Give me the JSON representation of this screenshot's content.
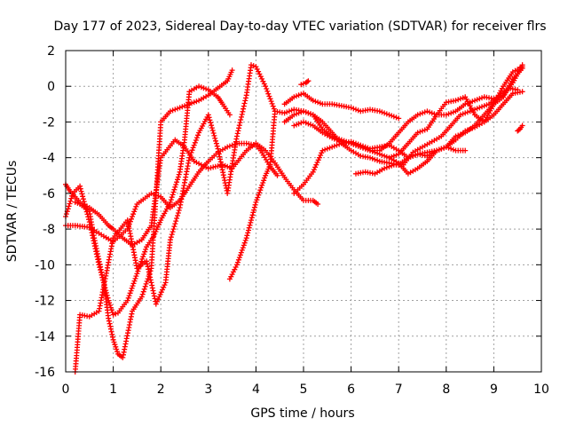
{
  "chart_data": {
    "type": "scatter",
    "title": "Day 177 of 2023, Sidereal Day-to-day VTEC variation (SDTVAR) for receiver flrs",
    "xlabel": "GPS time / hours",
    "ylabel": "SDTVAR / TECUs",
    "xlim": [
      0,
      10
    ],
    "ylim": [
      -16,
      2
    ],
    "xticks": [
      "0",
      "1",
      "2",
      "3",
      "4",
      "5",
      "6",
      "7",
      "8",
      "9",
      "10"
    ],
    "yticks": [
      "-16",
      "-14",
      "-12",
      "-10",
      "-8",
      "-6",
      "-4",
      "-2",
      "0",
      "2"
    ],
    "grid": true,
    "marker": "+",
    "color": "#ff0000",
    "series": [
      {
        "x": [
          0.0,
          0.2,
          0.5,
          0.8,
          1.0,
          1.3,
          1.5,
          1.8,
          2.0,
          2.2,
          2.4,
          2.6,
          2.8,
          3.0,
          3.2,
          3.4,
          3.6,
          3.8,
          4.0,
          4.1,
          4.3,
          4.45
        ],
        "y": [
          -7.8,
          -7.8,
          -7.9,
          -8.4,
          -8.7,
          -8.0,
          -6.6,
          -6.0,
          -6.2,
          -6.8,
          -6.4,
          -5.6,
          -4.8,
          -4.2,
          -3.7,
          -3.4,
          -3.2,
          -3.2,
          -3.3,
          -3.6,
          -4.5,
          -5.0
        ]
      },
      {
        "x": [
          0.0,
          0.1,
          0.3,
          0.5,
          0.7,
          0.9,
          1.0,
          1.2,
          1.4,
          1.6,
          1.8,
          2.0,
          2.3,
          2.5,
          2.7,
          3.0,
          3.3,
          3.5,
          3.8,
          4.0,
          4.2,
          4.4,
          4.6,
          4.8,
          5.0,
          5.2,
          5.3
        ],
        "y": [
          -5.5,
          -5.9,
          -6.5,
          -6.8,
          -7.2,
          -7.8,
          -8.0,
          -8.5,
          -8.9,
          -8.6,
          -7.8,
          -4.0,
          -3.0,
          -3.4,
          -4.2,
          -4.6,
          -4.4,
          -4.6,
          -3.6,
          -3.2,
          -3.6,
          -4.3,
          -5.1,
          -5.8,
          -6.4,
          -6.4,
          -6.6
        ]
      },
      {
        "x": [
          0.0,
          0.15,
          0.3,
          0.5,
          0.7,
          0.9,
          1.0,
          1.1,
          1.3,
          1.5,
          1.7,
          1.85,
          2.0,
          2.2,
          2.4,
          2.5,
          2.6,
          2.8,
          3.0,
          3.2,
          3.3,
          3.45
        ],
        "y": [
          -7.3,
          -6.0,
          -5.6,
          -7.6,
          -10.0,
          -12.0,
          -12.8,
          -12.7,
          -12.0,
          -10.5,
          -9.0,
          -8.4,
          -7.5,
          -6.5,
          -4.8,
          -3.0,
          -0.3,
          0.0,
          -0.2,
          -0.6,
          -1.0,
          -1.6
        ]
      },
      {
        "x": [
          0.2,
          0.3,
          0.5,
          0.6,
          0.8,
          0.9,
          1.0,
          1.1,
          1.2,
          1.4,
          1.6,
          1.8,
          2.0,
          2.2,
          2.4,
          2.6,
          2.8,
          3.0,
          3.2,
          3.4,
          3.5
        ],
        "y": [
          -6.5,
          -6.6,
          -7.0,
          -8.5,
          -11.0,
          -13.0,
          -14.2,
          -15.0,
          -15.2,
          -12.6,
          -11.8,
          -10.2,
          -2.0,
          -1.4,
          -1.2,
          -1.0,
          -0.8,
          -0.5,
          -0.1,
          0.3,
          0.9
        ]
      },
      {
        "x": [
          0.2,
          0.3,
          0.5,
          0.7,
          1.0,
          1.3,
          1.5,
          1.7,
          1.9,
          2.1,
          2.2,
          2.4,
          2.6,
          2.8,
          3.0,
          3.2,
          3.4,
          3.6,
          3.8,
          3.9,
          4.0,
          4.2,
          4.4
        ],
        "y": [
          -16.0,
          -12.8,
          -12.9,
          -12.6,
          -8.5,
          -7.5,
          -10.2,
          -9.8,
          -12.2,
          -11.0,
          -8.6,
          -6.8,
          -4.0,
          -2.6,
          -1.6,
          -3.5,
          -6.0,
          -2.8,
          -0.5,
          1.2,
          1.1,
          0.0,
          -1.4
        ]
      },
      {
        "x": [
          3.45,
          3.6,
          3.8,
          4.0,
          4.2,
          4.3,
          4.4,
          4.6,
          4.8,
          5.0,
          5.2,
          5.4,
          5.6,
          5.8,
          6.0,
          6.2,
          6.4,
          6.6,
          6.8,
          7.0,
          7.2,
          7.4,
          7.6,
          7.8,
          8.0,
          8.2,
          8.4,
          8.6,
          8.8,
          9.0,
          9.2,
          9.4,
          9.6
        ],
        "y": [
          -10.8,
          -10.0,
          -8.5,
          -6.5,
          -5.0,
          -4.4,
          -1.4,
          -1.5,
          -1.3,
          -1.4,
          -1.6,
          -2.4,
          -2.8,
          -3.0,
          -3.2,
          -3.4,
          -3.6,
          -3.6,
          -3.2,
          -2.6,
          -2.0,
          -1.6,
          -1.4,
          -1.6,
          -1.6,
          -1.4,
          -1.0,
          -0.8,
          -0.6,
          -0.7,
          -0.5,
          0.2,
          1.2
        ]
      },
      {
        "x": [
          4.8,
          5.0,
          5.2,
          5.4,
          5.6,
          5.8,
          6.0,
          6.2,
          6.4,
          6.6,
          6.8,
          7.0,
          7.2,
          7.4,
          7.6,
          7.8,
          8.0,
          8.2,
          8.4,
          8.6,
          8.8,
          9.0,
          9.2,
          9.4,
          9.6
        ],
        "y": [
          -2.2,
          -2.0,
          -2.2,
          -2.6,
          -2.9,
          -3.1,
          -3.2,
          -3.4,
          -3.6,
          -3.8,
          -4.0,
          -3.8,
          -3.2,
          -2.6,
          -2.4,
          -1.6,
          -0.9,
          -0.8,
          -0.6,
          -1.6,
          -2.0,
          -1.6,
          -1.0,
          -0.4,
          -0.3
        ]
      },
      {
        "x": [
          4.6,
          4.8,
          5.0,
          5.2,
          5.4,
          5.6,
          5.8,
          6.0,
          6.2,
          6.4,
          6.6,
          6.8,
          7.0,
          7.2,
          7.4,
          7.6,
          7.8,
          8.0,
          8.2,
          8.4,
          8.6,
          8.8,
          9.0,
          9.2,
          9.4,
          9.6
        ],
        "y": [
          -2.0,
          -1.6,
          -1.4,
          -1.6,
          -2.0,
          -2.6,
          -3.2,
          -3.6,
          -3.9,
          -4.0,
          -4.2,
          -4.3,
          -4.4,
          -4.0,
          -3.8,
          -3.7,
          -3.6,
          -3.4,
          -3.0,
          -2.5,
          -2.3,
          -2.0,
          -1.0,
          0.0,
          0.8,
          1.1
        ]
      },
      {
        "x": [
          4.8,
          5.0,
          5.2,
          5.4,
          5.6,
          5.8,
          6.0,
          6.2,
          6.4,
          6.6,
          6.8,
          7.0,
          7.2,
          7.4,
          7.6,
          7.8,
          8.0,
          8.2,
          8.4,
          8.6,
          8.8,
          9.0,
          9.2,
          9.4,
          9.6
        ],
        "y": [
          -6.0,
          -5.5,
          -4.8,
          -3.6,
          -3.4,
          -3.2,
          -3.1,
          -3.3,
          -3.5,
          -3.4,
          -3.3,
          -3.6,
          -4.0,
          -3.8,
          -3.9,
          -3.6,
          -3.4,
          -2.8,
          -2.6,
          -2.2,
          -1.6,
          -1.0,
          -0.6,
          0.4,
          1.0
        ]
      },
      {
        "x": [
          4.6,
          4.8,
          5.0,
          5.2,
          5.4,
          5.6,
          5.8,
          6.0,
          6.2,
          6.4,
          6.6,
          6.8,
          7.0
        ],
        "y": [
          -1.0,
          -0.6,
          -0.4,
          -0.8,
          -1.0,
          -1.0,
          -1.1,
          -1.2,
          -1.4,
          -1.3,
          -1.4,
          -1.6,
          -1.8
        ]
      },
      {
        "x": [
          6.1,
          6.3,
          6.5,
          6.7,
          6.9,
          7.1,
          7.3,
          7.5,
          7.7,
          7.9,
          8.1,
          8.3,
          8.5,
          8.7,
          8.9,
          9.1,
          9.3,
          9.5
        ],
        "y": [
          -4.9,
          -4.8,
          -4.9,
          -4.6,
          -4.4,
          -4.4,
          -3.7,
          -3.4,
          -3.1,
          -2.8,
          -2.2,
          -1.6,
          -1.4,
          -1.2,
          -1.0,
          -0.6,
          -0.1,
          -0.2
        ]
      },
      {
        "x": [
          6.8,
          7.0,
          7.2,
          7.4,
          7.6,
          7.8,
          8.0,
          8.2,
          8.4
        ],
        "y": [
          -4.0,
          -4.3,
          -4.9,
          -4.6,
          -4.2,
          -3.6,
          -3.4,
          -3.6,
          -3.6
        ]
      },
      {
        "x": [
          9.5,
          9.55,
          9.6
        ],
        "y": [
          -2.5,
          -2.4,
          -2.2
        ]
      },
      {
        "x": [
          4.95,
          5.05,
          5.1
        ],
        "y": [
          0.1,
          0.2,
          0.3
        ]
      }
    ]
  }
}
